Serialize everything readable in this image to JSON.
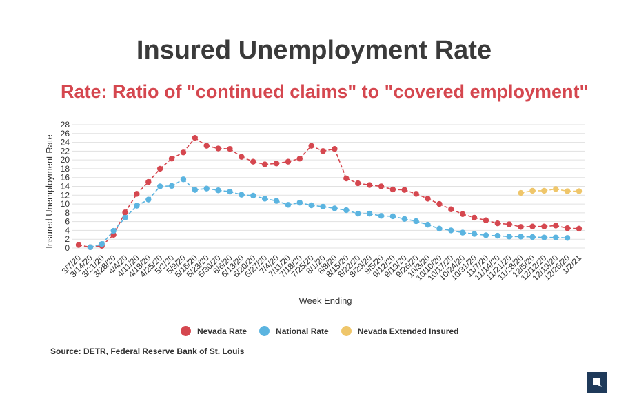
{
  "title": "Insured Unemployment Rate",
  "subtitle": "Rate: Ratio of \"continued claims\" to \"covered employment\"",
  "source": "Source: DETR, Federal Reserve Bank of St. Louis",
  "logo_icon": "nevada-state-logo-icon",
  "chart_data": {
    "type": "line",
    "xlabel": "Week Ending",
    "ylabel": "Insured Unemployment Rate",
    "ylim": [
      0,
      28
    ],
    "yticks": [
      0,
      2,
      4,
      6,
      8,
      10,
      12,
      14,
      16,
      18,
      20,
      22,
      24,
      26,
      28
    ],
    "grid": true,
    "legend_position": "bottom",
    "categories": [
      "3/7/20",
      "3/14/20",
      "3/21/20",
      "3/28/20",
      "4/4/20",
      "4/11/20",
      "4/18/20",
      "4/25/20",
      "5/2/20",
      "5/9/20",
      "5/16/20",
      "5/23/20",
      "5/30/20",
      "6/6/20",
      "6/13/20",
      "6/20/20",
      "6/27/20",
      "7/4/20",
      "7/11/20",
      "7/18/20",
      "7/25/20",
      "8/1/20",
      "8/8/20",
      "8/15/20",
      "8/22/20",
      "8/29/20",
      "9/5/20",
      "9/12/20",
      "9/19/20",
      "9/26/20",
      "10/3/20",
      "10/10/20",
      "10/17/20",
      "10/24/20",
      "10/31/20",
      "11/7/20",
      "11/14/20",
      "11/21/20",
      "11/28/20",
      "12/5/20",
      "12/12/20",
      "12/19/20",
      "12/26/20",
      "1/2/21"
    ],
    "series": [
      {
        "name": "Nevada Rate",
        "color": "#d5474f",
        "values": [
          0.7,
          0.2,
          0.5,
          3.0,
          8.1,
          12.3,
          15.0,
          18.0,
          20.3,
          21.7,
          25.0,
          23.2,
          22.6,
          22.5,
          20.7,
          19.6,
          19.0,
          19.2,
          19.6,
          20.3,
          23.2,
          22.0,
          22.5,
          15.8,
          14.7,
          14.3,
          14.0,
          13.3,
          13.2,
          12.3,
          11.2,
          10.0,
          8.8,
          7.7,
          6.9,
          6.3,
          5.6,
          5.4,
          4.8,
          4.9,
          4.9,
          5.1,
          4.5,
          4.4
        ]
      },
      {
        "name": "National Rate",
        "color": "#5bb4e0",
        "values": [
          null,
          0.2,
          0.9,
          3.9,
          6.9,
          9.6,
          11.0,
          14.0,
          14.1,
          15.6,
          13.2,
          13.5,
          13.1,
          12.8,
          12.1,
          11.9,
          11.2,
          10.7,
          9.8,
          10.3,
          9.7,
          9.4,
          9.0,
          8.6,
          7.8,
          7.8,
          7.3,
          7.2,
          6.6,
          6.1,
          5.3,
          4.4,
          4.0,
          3.5,
          3.2,
          2.9,
          2.8,
          2.6,
          2.6,
          2.5,
          2.4,
          2.4,
          2.3,
          null
        ]
      },
      {
        "name": "Nevada Extended Insured",
        "color": "#efc66a",
        "values": [
          null,
          null,
          null,
          null,
          null,
          null,
          null,
          null,
          null,
          null,
          null,
          null,
          null,
          null,
          null,
          null,
          null,
          null,
          null,
          null,
          null,
          null,
          null,
          null,
          null,
          null,
          null,
          null,
          null,
          null,
          null,
          null,
          null,
          null,
          null,
          null,
          null,
          null,
          12.5,
          13.0,
          13.0,
          13.4,
          12.9,
          12.9
        ]
      }
    ]
  }
}
